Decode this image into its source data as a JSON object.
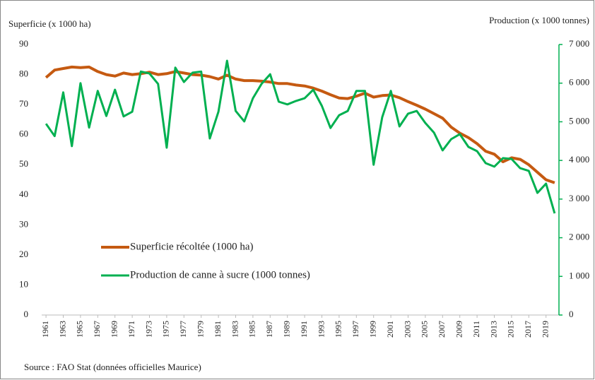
{
  "chart_data": {
    "type": "line",
    "y_label": "Superficie  (x 1000 ha)",
    "y2_label": "Production  (x 1000 tonnes)",
    "source": "Source : FAO Stat (données officielles  Maurice)",
    "x": [
      1961,
      1962,
      1963,
      1964,
      1965,
      1966,
      1967,
      1968,
      1969,
      1970,
      1971,
      1972,
      1973,
      1974,
      1975,
      1976,
      1977,
      1978,
      1979,
      1980,
      1981,
      1982,
      1983,
      1984,
      1985,
      1986,
      1987,
      1988,
      1989,
      1990,
      1991,
      1992,
      1993,
      1994,
      1995,
      1996,
      1997,
      1998,
      1999,
      2000,
      2001,
      2002,
      2003,
      2004,
      2005,
      2006,
      2007,
      2008,
      2009,
      2010,
      2011,
      2012,
      2013,
      2014,
      2015,
      2016,
      2017,
      2018,
      2019,
      2020
    ],
    "xlim": [
      1960.5,
      2020.5
    ],
    "xticks": [
      1961,
      1963,
      1965,
      1967,
      1969,
      1971,
      1973,
      1975,
      1977,
      1979,
      1981,
      1983,
      1985,
      1987,
      1989,
      1991,
      1993,
      1995,
      1997,
      1999,
      2001,
      2003,
      2005,
      2007,
      2009,
      2011,
      2013,
      2015,
      2017,
      2019
    ],
    "ylim": [
      0,
      90
    ],
    "yticks": [
      0,
      10,
      20,
      30,
      40,
      50,
      60,
      70,
      80,
      90
    ],
    "y2lim": [
      0,
      7000
    ],
    "y2ticks": [
      0,
      {
        "value": 1000,
        "label": "1 000"
      },
      {
        "value": 2000,
        "label": "2 000"
      },
      {
        "value": 3000,
        "label": "3 000"
      },
      {
        "value": 4000,
        "label": "4 000"
      },
      {
        "value": 5000,
        "label": "5 000"
      },
      {
        "value": 6000,
        "label": "6 000"
      },
      {
        "value": 7000,
        "label": "7 000"
      }
    ],
    "series": [
      {
        "name": "Superficie récoltée (1000 ha)",
        "color": "#c55a11",
        "values": [
          79,
          81.5,
          82,
          82.5,
          82.3,
          82.5,
          81,
          80,
          79.5,
          80.5,
          80,
          80.3,
          80.8,
          80,
          80.3,
          81,
          80.5,
          80,
          79.8,
          79.3,
          78.5,
          79.8,
          78.5,
          78,
          78,
          77.8,
          77.5,
          77,
          77,
          76.5,
          76.2,
          75.5,
          74.5,
          73.3,
          72.2,
          72,
          72.8,
          73.8,
          72.5,
          73,
          73.2,
          72.3,
          71,
          69.8,
          68.5,
          67,
          65.5,
          62.5,
          60.5,
          59,
          57,
          54.5,
          53.5,
          51,
          52.3,
          51.8,
          50,
          47.5,
          45,
          44
        ]
      },
      {
        "name": "Production de canne à sucre (1000 tonnes)",
        "color": "#00b050",
        "axis": "y2",
        "values": [
          4950,
          4630,
          5760,
          4370,
          6000,
          4850,
          5800,
          5150,
          5830,
          5140,
          5260,
          6300,
          6250,
          5980,
          4330,
          6400,
          6030,
          6270,
          6300,
          4570,
          5260,
          6580,
          5280,
          5010,
          5610,
          5980,
          6230,
          5520,
          5450,
          5540,
          5610,
          5830,
          5410,
          4840,
          5170,
          5280,
          5800,
          5800,
          3890,
          5120,
          5800,
          4880,
          5210,
          5280,
          4970,
          4720,
          4260,
          4550,
          4680,
          4350,
          4240,
          3930,
          3840,
          4060,
          4040,
          3800,
          3730,
          3160,
          3400,
          2630
        ]
      }
    ]
  }
}
